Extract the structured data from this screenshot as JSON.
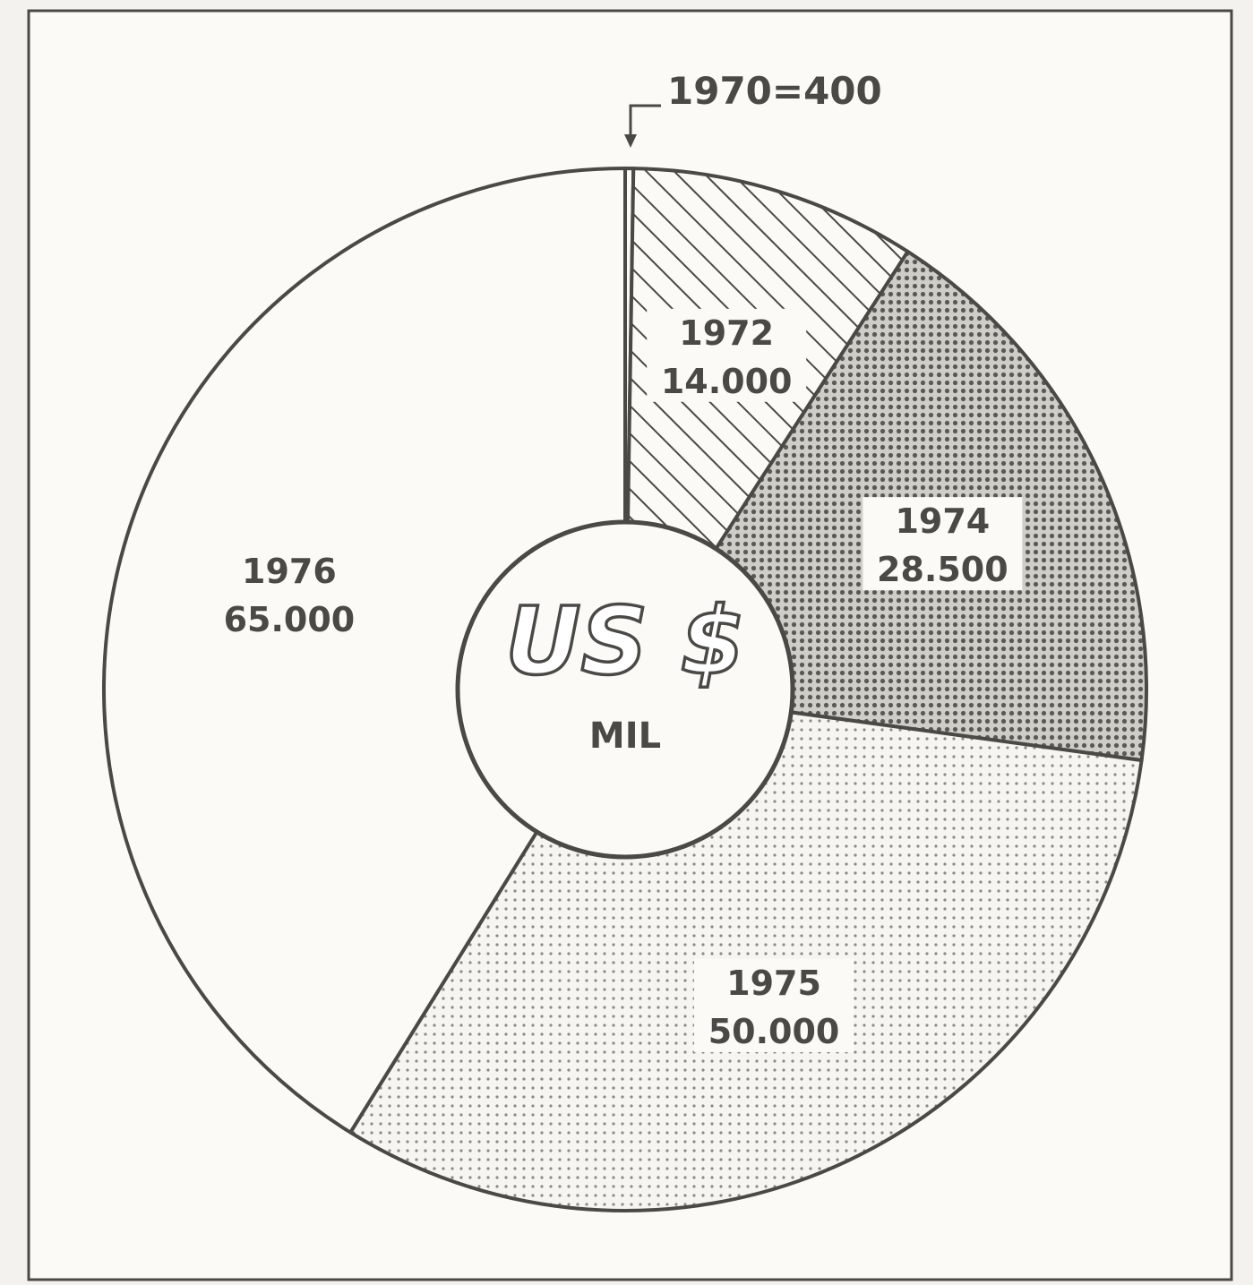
{
  "chart_data": {
    "type": "pie",
    "center_label": "US $",
    "center_sublabel": "MIL",
    "callout": "1970=400",
    "slices": [
      {
        "year": "1970",
        "value": 400,
        "label": "1970=400",
        "pattern": "none"
      },
      {
        "year": "1972",
        "value": 14000,
        "value_text": "14.000",
        "pattern": "hatch"
      },
      {
        "year": "1974",
        "value": 28500,
        "value_text": "28.500",
        "pattern": "dense-dots"
      },
      {
        "year": "1975",
        "value": 50000,
        "value_text": "50.000",
        "pattern": "light-dots"
      },
      {
        "year": "1976",
        "value": 65000,
        "value_text": "65.000",
        "pattern": "none"
      }
    ],
    "colors": {
      "line": "#4a4946",
      "paper": "#fbfaf7",
      "background": "#f3f2ee"
    }
  }
}
